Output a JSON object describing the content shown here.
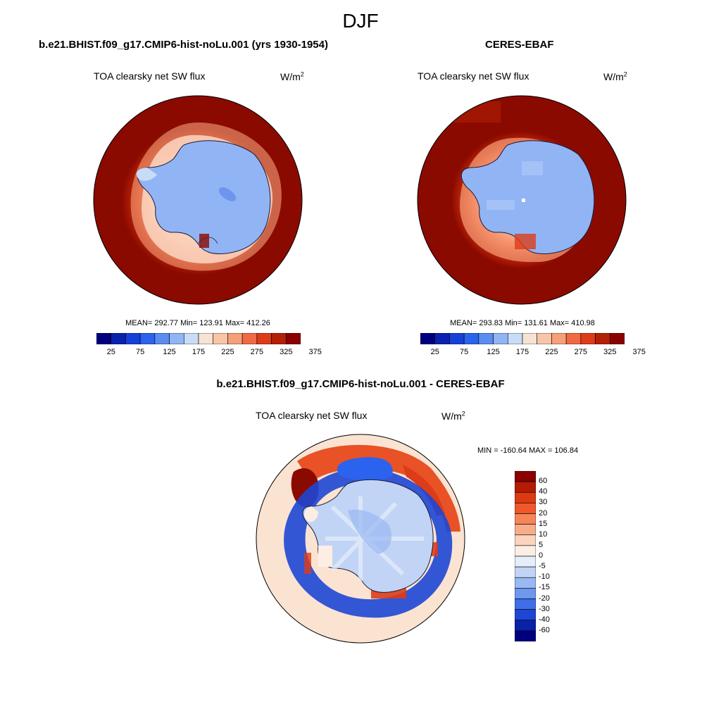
{
  "figure": {
    "title": "DJF"
  },
  "panels": [
    {
      "id": "model",
      "title": "b.e21.BHIST.f09_g17.CMIP6-hist-noLu.001 (yrs 1930-1954)",
      "variable": "TOA clearsky net SW flux",
      "units_base": "W/m",
      "units_exp": "2",
      "stats": "MEAN= 292.77  Min= 123.91  Max= 412.26",
      "mean": 292.77,
      "min": 123.91,
      "max": 412.26
    },
    {
      "id": "obs",
      "title": "CERES-EBAF",
      "variable": "TOA clearsky net SW flux",
      "units_base": "W/m",
      "units_exp": "2",
      "stats": "MEAN= 293.83  Min= 131.61  Max= 410.98",
      "mean": 293.83,
      "min": 131.61,
      "max": 410.98
    },
    {
      "id": "diff",
      "title": "b.e21.BHIST.f09_g17.CMIP6-hist-noLu.001 - CERES-EBAF",
      "variable": "TOA clearsky net SW flux",
      "units_base": "W/m",
      "units_exp": "2",
      "stats": "MIN = -160.64 MAX = 106.84",
      "min": -160.64,
      "max": 106.84
    }
  ],
  "colorbars": {
    "absolute": {
      "tick_labels": [
        "25",
        "75",
        "125",
        "175",
        "225",
        "275",
        "325",
        "375"
      ],
      "colors": [
        "#00007f",
        "#0a22b0",
        "#1641d8",
        "#2b63ee",
        "#5a8cf2",
        "#91b4f5",
        "#c8dcf8",
        "#f6e3d3",
        "#f8c5a6",
        "#f6a07a",
        "#f06a45",
        "#dd3c18",
        "#b42005",
        "#8b0000"
      ]
    },
    "difference": {
      "tick_labels": [
        "60",
        "40",
        "30",
        "20",
        "15",
        "10",
        "5",
        "0",
        "-5",
        "-10",
        "-15",
        "-20",
        "-30",
        "-40",
        "-60"
      ],
      "colors": [
        "#8b0000",
        "#b41c05",
        "#dc3a12",
        "#f0582b",
        "#f6855a",
        "#f8ad8a",
        "#fad4bd",
        "#fceee4",
        "#e6eefb",
        "#c2d4f5",
        "#9ab8f2",
        "#6e97ee",
        "#3f6ee8",
        "#1d46d4",
        "#0a22a8",
        "#00007f"
      ]
    }
  },
  "palette": {
    "ocean_red": "#8b0a00",
    "ice_blue": "#91b4f5",
    "ice_deep": "#6d95ee",
    "ice_light": "#c8dcf8",
    "diff_bg": "#fbe3d2"
  }
}
